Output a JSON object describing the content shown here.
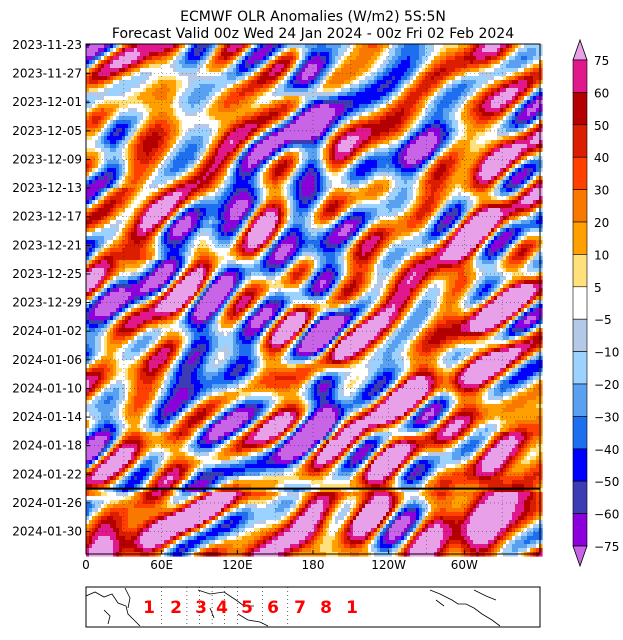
{
  "chart_data": {
    "type": "heatmap",
    "title": "ECMWF OLR Anomalies (W/m2) 5S:5N",
    "subtitle": "Forecast Valid 00z Wed 24 Jan 2024 - 00z Fri 02 Feb 2024",
    "xlabel": "",
    "ylabel": "",
    "x_ticks": [
      "0",
      "60E",
      "120E",
      "180",
      "120W",
      "60W"
    ],
    "y_ticks": [
      "2023-11-23",
      "2023-11-27",
      "2023-12-01",
      "2023-12-05",
      "2023-12-09",
      "2023-12-13",
      "2023-12-17",
      "2023-12-21",
      "2023-12-25",
      "2023-12-29",
      "2024-01-02",
      "2024-01-06",
      "2024-01-10",
      "2024-01-14",
      "2024-01-18",
      "2024-01-22",
      "2024-01-26",
      "2024-01-30"
    ],
    "forecast_start_date": "2024-01-24",
    "colorbar": {
      "ticks": [
        "75",
        "60",
        "50",
        "40",
        "30",
        "20",
        "10",
        "5",
        "−5",
        "−10",
        "−20",
        "−30",
        "−40",
        "−50",
        "−60",
        "−75"
      ],
      "colors": [
        "#e8a0e8",
        "#e0188c",
        "#b40000",
        "#dc1e00",
        "#ff4000",
        "#f87800",
        "#ffa000",
        "#ffe07a",
        "#ffffff",
        "#b4c8e8",
        "#9cd2ff",
        "#5aa0f0",
        "#1e6ef0",
        "#0000ff",
        "#3c3cb4",
        "#8c00dc",
        "#c864e6"
      ]
    },
    "mjo_phases": [
      "1",
      "2",
      "3",
      "4",
      "5",
      "6",
      "7",
      "8",
      "1"
    ],
    "grid": true
  }
}
